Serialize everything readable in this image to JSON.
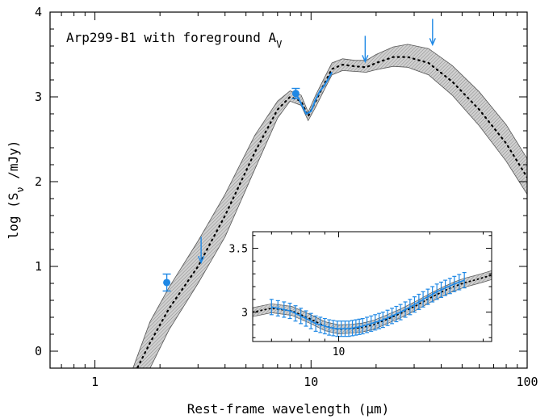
{
  "chart_data": [
    {
      "type": "line",
      "annotation": "Arp299-B1 with foreground A",
      "annotation_sub": "V",
      "xlabel": "Rest-frame wavelength (μm)",
      "ylabel_parts": [
        "log (S",
        "ν",
        " /mJy)"
      ],
      "x_scale": "log",
      "xlim": [
        0.62,
        100
      ],
      "ylim": [
        -0.2,
        4
      ],
      "x_ticks": [
        1,
        10,
        100
      ],
      "x_tick_labels": [
        "1",
        "10",
        "100"
      ],
      "y_ticks": [
        0,
        1,
        2,
        3,
        4
      ],
      "y_tick_labels": [
        "0",
        "1",
        "2",
        "3",
        "4"
      ],
      "model": {
        "x": [
          1.5,
          1.8,
          2.2,
          3.0,
          4.0,
          5.5,
          7.0,
          8.0,
          9.0,
          9.7,
          10.5,
          11.5,
          12.5,
          14,
          16,
          18,
          20,
          24,
          28,
          35,
          45,
          60,
          80,
          100
        ],
        "y": [
          -0.3,
          0.1,
          0.5,
          1.0,
          1.6,
          2.35,
          2.85,
          3.0,
          2.95,
          2.77,
          2.95,
          3.15,
          3.33,
          3.38,
          3.36,
          3.35,
          3.4,
          3.47,
          3.47,
          3.4,
          3.18,
          2.85,
          2.45,
          2.05
        ],
        "lower": [
          -0.45,
          -0.2,
          0.25,
          0.8,
          1.35,
          2.15,
          2.75,
          2.95,
          2.9,
          2.72,
          2.88,
          3.08,
          3.26,
          3.31,
          3.3,
          3.29,
          3.32,
          3.36,
          3.35,
          3.26,
          3.02,
          2.66,
          2.24,
          1.85
        ],
        "upper": [
          -0.2,
          0.35,
          0.75,
          1.3,
          1.85,
          2.55,
          2.95,
          3.07,
          3.02,
          2.82,
          3.02,
          3.22,
          3.4,
          3.45,
          3.43,
          3.43,
          3.5,
          3.59,
          3.62,
          3.57,
          3.37,
          3.06,
          2.67,
          2.27
        ]
      },
      "points": [
        {
          "x": 2.15,
          "y": 0.81,
          "yerr": 0.1
        },
        {
          "x": 8.5,
          "y": 3.04,
          "yerr": 0.06
        }
      ],
      "upper_limits": [
        {
          "x": 3.1,
          "y": 1.35
        },
        {
          "x": 17.8,
          "y": 3.72
        },
        {
          "x": 36.5,
          "y": 3.92
        }
      ],
      "spectrum": {
        "x": [
          8.6,
          9.0,
          9.5,
          10.0,
          10.5,
          11.0,
          11.5,
          12.0,
          12.5
        ],
        "y": [
          3.02,
          2.92,
          2.8,
          2.83,
          2.97,
          3.07,
          3.13,
          3.21,
          3.29
        ]
      },
      "colors": {
        "data": "#1e88e5",
        "band": "#b8b8b8"
      }
    },
    {
      "type": "line",
      "title": "",
      "x_scale": "log",
      "xlim": [
        5.2,
        32
      ],
      "ylim": [
        2.77,
        3.63
      ],
      "x_ticks": [
        10
      ],
      "x_tick_labels": [
        "10"
      ],
      "y_ticks": [
        3,
        3.5
      ],
      "y_tick_labels": [
        "3",
        "3.5"
      ],
      "model": {
        "x": [
          5.2,
          6,
          7,
          8,
          9,
          10,
          11,
          12,
          13,
          14,
          16,
          18,
          20,
          22,
          24,
          26,
          28,
          30,
          32
        ],
        "y": [
          3.0,
          3.03,
          3.01,
          2.95,
          2.89,
          2.865,
          2.87,
          2.88,
          2.9,
          2.93,
          2.99,
          3.05,
          3.11,
          3.16,
          3.2,
          3.23,
          3.25,
          3.27,
          3.29
        ],
        "halfwidth": 0.035
      },
      "spectrum": {
        "x": [
          6.0,
          6.3,
          6.6,
          6.9,
          7.2,
          7.5,
          7.8,
          8.1,
          8.4,
          8.7,
          9.0,
          9.3,
          9.6,
          9.9,
          10.2,
          10.5,
          10.8,
          11.1,
          11.4,
          11.7,
          12.0,
          12.4,
          12.8,
          13.2,
          13.6,
          14.0,
          14.5,
          15.0,
          15.5,
          16.0,
          16.6,
          17.2,
          17.8,
          18.4,
          19.0,
          19.7,
          20.4,
          21.1,
          21.8,
          22.5,
          23.3,
          24.1,
          25.0,
          26.0
        ],
        "y": [
          3.04,
          3.03,
          3.02,
          3.01,
          2.99,
          2.97,
          2.95,
          2.93,
          2.91,
          2.9,
          2.89,
          2.88,
          2.875,
          2.87,
          2.87,
          2.87,
          2.87,
          2.875,
          2.88,
          2.885,
          2.89,
          2.9,
          2.91,
          2.92,
          2.93,
          2.94,
          2.955,
          2.97,
          2.985,
          3.0,
          3.02,
          3.04,
          3.06,
          3.08,
          3.1,
          3.12,
          3.14,
          3.16,
          3.175,
          3.19,
          3.205,
          3.22,
          3.235,
          3.25
        ],
        "yerr": 0.06
      },
      "colors": {
        "data": "#1e88e5",
        "band": "#b8b8b8"
      }
    }
  ]
}
